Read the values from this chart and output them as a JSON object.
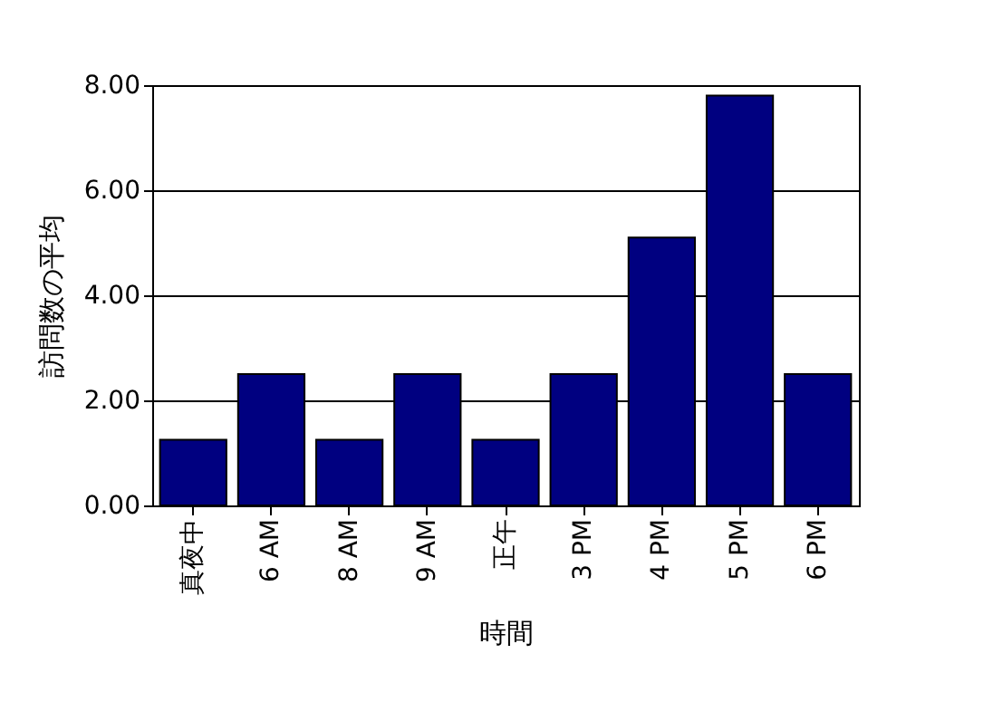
{
  "chart_data": {
    "type": "bar",
    "xlabel": "時間",
    "ylabel": "訪問数の平均",
    "categories": [
      "真夜中",
      "6 AM",
      "8 AM",
      "9 AM",
      "正午",
      "3 PM",
      "4 PM",
      "5 PM",
      "6 PM"
    ],
    "values": [
      1.25,
      2.5,
      1.25,
      2.5,
      1.25,
      2.5,
      5.1,
      7.8,
      2.5
    ],
    "color": "#000080",
    "ylim": [
      0,
      8
    ],
    "yticks": [
      {
        "value": 0,
        "label": "0.00"
      },
      {
        "value": 2,
        "label": "2.00"
      },
      {
        "value": 4,
        "label": "4.00"
      },
      {
        "value": 6,
        "label": "6.00"
      },
      {
        "value": 8,
        "label": "8.00"
      }
    ],
    "grid": "y"
  }
}
